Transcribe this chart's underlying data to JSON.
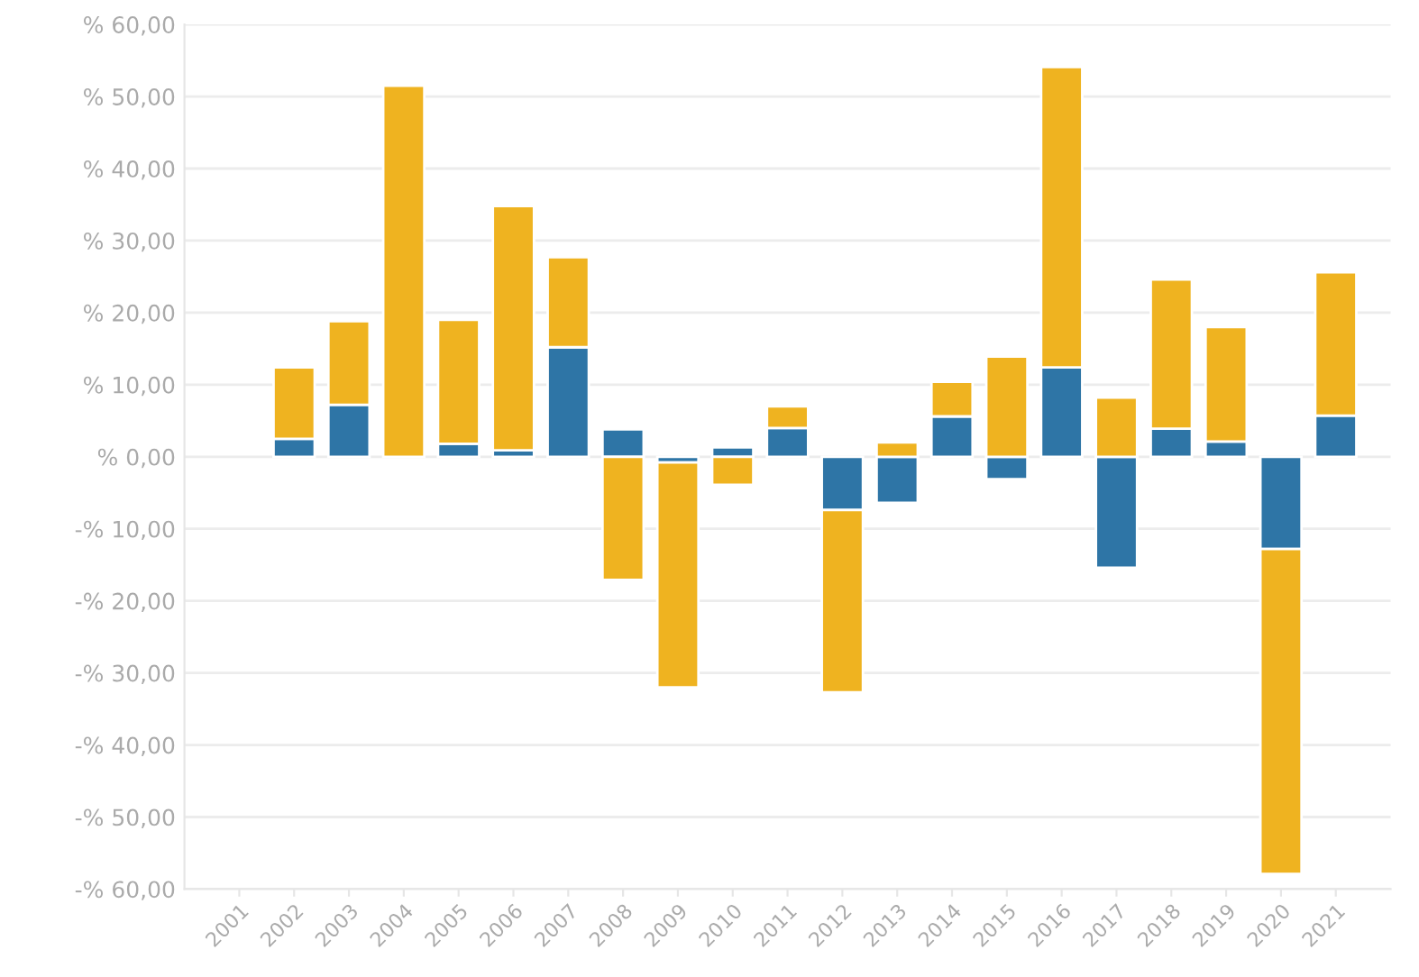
{
  "chart_data": {
    "type": "bar",
    "stacked": true,
    "categories": [
      "2001",
      "2002",
      "2003",
      "2004",
      "2005",
      "2006",
      "2007",
      "2008",
      "2009",
      "2010",
      "2011",
      "2012",
      "2013",
      "2014",
      "2015",
      "2016",
      "2017",
      "2018",
      "2019",
      "2020",
      "2021"
    ],
    "series": [
      {
        "color": "#2e75a6",
        "values": [
          null,
          2.5,
          7.2,
          null,
          1.8,
          0.9,
          15.2,
          3.8,
          -0.8,
          1.3,
          4.0,
          -7.4,
          -6.4,
          5.6,
          -3.1,
          12.4,
          -15.4,
          3.9,
          2.1,
          -12.8,
          5.7
        ]
      },
      {
        "color": "#efb320",
        "values": [
          null,
          9.9,
          11.6,
          51.5,
          17.2,
          33.9,
          12.5,
          -17.1,
          -31.2,
          -3.9,
          3.0,
          -25.3,
          2.0,
          4.8,
          13.9,
          41.7,
          8.2,
          20.7,
          15.9,
          -45.1,
          19.9
        ]
      }
    ],
    "ylim": [
      -60,
      60
    ],
    "yticks": [
      {
        "value": -60,
        "label": "-% 60,00"
      },
      {
        "value": -50,
        "label": "-% 50,00"
      },
      {
        "value": -40,
        "label": "-% 40,00"
      },
      {
        "value": -30,
        "label": "-% 30,00"
      },
      {
        "value": -20,
        "label": "-% 20,00"
      },
      {
        "value": -10,
        "label": "-% 10,00"
      },
      {
        "value": 0,
        "label": "% 0,00"
      },
      {
        "value": 10,
        "label": "% 10,00"
      },
      {
        "value": 20,
        "label": "% 20,00"
      },
      {
        "value": 30,
        "label": "% 30,00"
      },
      {
        "value": 40,
        "label": "% 40,00"
      },
      {
        "value": 50,
        "label": "% 50,00"
      },
      {
        "value": 60,
        "label": "% 60,00"
      }
    ],
    "grid": "y"
  }
}
